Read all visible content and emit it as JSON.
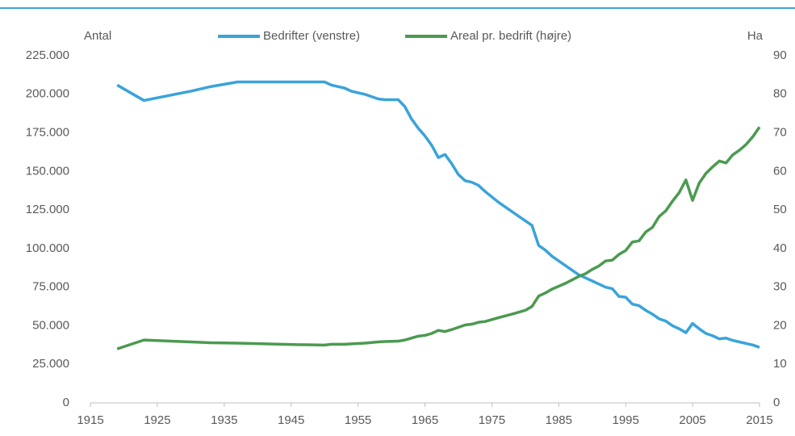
{
  "chart_data": {
    "type": "line",
    "y_label": "Antal",
    "y2_label": "Ha",
    "x": [
      1919,
      1923,
      1930,
      1933,
      1937,
      1946,
      1950,
      1951,
      1953,
      1954,
      1956,
      1958,
      1959,
      1961,
      1962,
      1963,
      1964,
      1965,
      1966,
      1967,
      1968,
      1969,
      1970,
      1971,
      1972,
      1973,
      1974,
      1976,
      1978,
      1979,
      1980,
      1981,
      1982,
      1983,
      1984,
      1986,
      1988,
      1989,
      1990,
      1991,
      1992,
      1993,
      1994,
      1995,
      1996,
      1997,
      1998,
      1999,
      2000,
      2001,
      2002,
      2003,
      2004,
      2005,
      2006,
      2007,
      2008,
      2009,
      2010,
      2011,
      2012,
      2013,
      2014,
      2015
    ],
    "series": [
      {
        "name": "Bedrifter (venstre)",
        "color": "#3aa3da",
        "values": [
          206000,
          196000,
          202000,
          205000,
          208000,
          208000,
          208000,
          206000,
          204000,
          202000,
          200000,
          197000,
          196500,
          196500,
          192000,
          184000,
          178000,
          173000,
          167000,
          159000,
          161000,
          155000,
          148000,
          144000,
          143000,
          141000,
          137000,
          130000,
          124000,
          121000,
          118000,
          115000,
          102000,
          99000,
          95000,
          89000,
          83000,
          81000,
          79000,
          77000,
          75000,
          74000,
          69000,
          68500,
          64000,
          63000,
          60000,
          57500,
          54500,
          53000,
          50000,
          48000,
          45500,
          51500,
          48000,
          45000,
          43500,
          41500,
          42000,
          40500,
          39500,
          38500,
          37500,
          36000
        ]
      },
      {
        "name": "Areal pr. bedrift (højre)",
        "color": "#4b9a50",
        "axis": "y2",
        "values": [
          14,
          16.3,
          15.8,
          15.6,
          15.5,
          15.1,
          15,
          15.2,
          15.2,
          15.3,
          15.5,
          15.8,
          15.9,
          16,
          16.3,
          16.8,
          17.3,
          17.5,
          18,
          18.8,
          18.5,
          19,
          19.6,
          20.2,
          20.4,
          20.9,
          21.1,
          22.1,
          23,
          23.5,
          24,
          25,
          27.7,
          28.5,
          29.5,
          31,
          32.8,
          33.5,
          34.6,
          35.5,
          36.8,
          37,
          38.5,
          39.5,
          41.7,
          42,
          44.3,
          45.5,
          48.3,
          49.8,
          52.3,
          54.5,
          57.8,
          52.5,
          57,
          59.5,
          61.2,
          62.7,
          62.2,
          64.3,
          65.5,
          67,
          69,
          71.5
        ]
      }
    ],
    "xlim": [
      1915,
      2015
    ],
    "xticks": [
      1915,
      1925,
      1935,
      1945,
      1955,
      1965,
      1975,
      1985,
      1995,
      2005,
      2015
    ],
    "ylim": [
      0,
      225000
    ],
    "yticks": [
      0,
      {
        "value": 25000,
        "label": "25.000"
      },
      {
        "value": 50000,
        "label": "50.000"
      },
      {
        "value": 75000,
        "label": "75.000"
      },
      {
        "value": 100000,
        "label": "100.000"
      },
      {
        "value": 125000,
        "label": "125.000"
      },
      {
        "value": 150000,
        "label": "150.000"
      },
      {
        "value": 175000,
        "label": "175.000"
      },
      {
        "value": 200000,
        "label": "200.000"
      },
      {
        "value": 225000,
        "label": "225.000"
      }
    ],
    "y2lim": [
      0,
      90
    ],
    "y2ticks": [
      0,
      10,
      20,
      30,
      40,
      50,
      60,
      70,
      80,
      90
    ],
    "grid": false
  }
}
